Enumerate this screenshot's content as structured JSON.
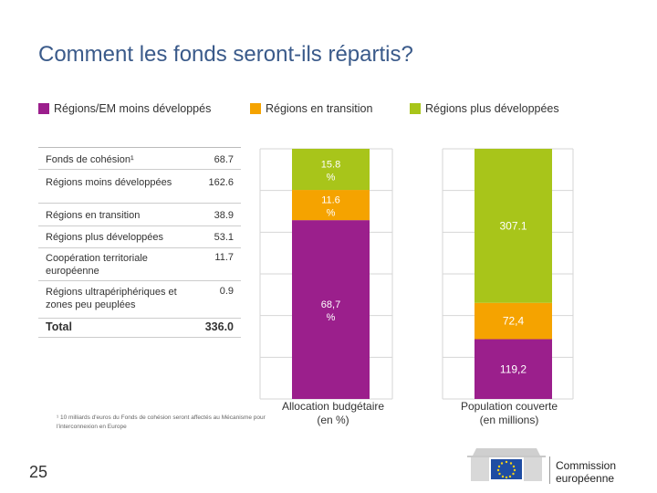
{
  "slide": {
    "title": "Comment les fonds seront-ils répartis?",
    "page_number": "25",
    "footnote": "¹ 10 milliards d'euros du Fonds de cohésion seront affectés au Mécanisme pour l'interconnexion en Europe",
    "logo_text_line1": "Commission",
    "logo_text_line2": "européenne"
  },
  "legend": [
    {
      "label": "Régions/EM moins développés",
      "color": "#9b1f8c"
    },
    {
      "label": "Régions en transition",
      "color": "#f5a300"
    },
    {
      "label": "Régions plus développées",
      "color": "#a8c51a"
    }
  ],
  "table": {
    "rows": [
      {
        "label": "Fonds de cohésion¹",
        "value": "68.7"
      },
      {
        "label": "Régions moins développées",
        "value": "162.6"
      },
      {
        "label": "Régions en transition",
        "value": "38.9"
      },
      {
        "label": "Régions plus développées",
        "value": "53.1"
      },
      {
        "label": "Coopération territoriale européenne",
        "value": "11.7"
      },
      {
        "label": "Régions ultrapériphériques et zones peu peuplées",
        "value": "0.9"
      },
      {
        "label": "Total",
        "value": "336.0"
      }
    ]
  },
  "chart_data": [
    {
      "type": "bar",
      "stacked": true,
      "title": "Allocation budgétaire (en %)",
      "categories": [
        "Allocation budgétaire (en %)"
      ],
      "series": [
        {
          "name": "Régions/EM moins développés",
          "values": [
            68.7
          ],
          "label": "68,7 %",
          "color": "#9b1f8c"
        },
        {
          "name": "Régions en transition",
          "values": [
            11.6
          ],
          "label": "11.6 %",
          "color": "#f5a300"
        },
        {
          "name": "Régions plus développées",
          "values": [
            15.8
          ],
          "label": "15.8 %",
          "color": "#a8c51a"
        }
      ],
      "caption_line1": "Allocation budgétaire",
      "caption_line2": "(en %)"
    },
    {
      "type": "bar",
      "stacked": true,
      "title": "Population couverte (en millions)",
      "categories": [
        "Population couverte (en millions)"
      ],
      "series": [
        {
          "name": "Régions/EM moins développés",
          "values": [
            119.2
          ],
          "label": "119,2",
          "color": "#9b1f8c"
        },
        {
          "name": "Régions en transition",
          "values": [
            72.4
          ],
          "label": "72,4",
          "color": "#f5a300"
        },
        {
          "name": "Régions plus développées",
          "values": [
            307.1
          ],
          "label": "307.1",
          "color": "#a8c51a"
        }
      ],
      "caption_line1": "Population couverte",
      "caption_line2": "(en millions)"
    }
  ]
}
